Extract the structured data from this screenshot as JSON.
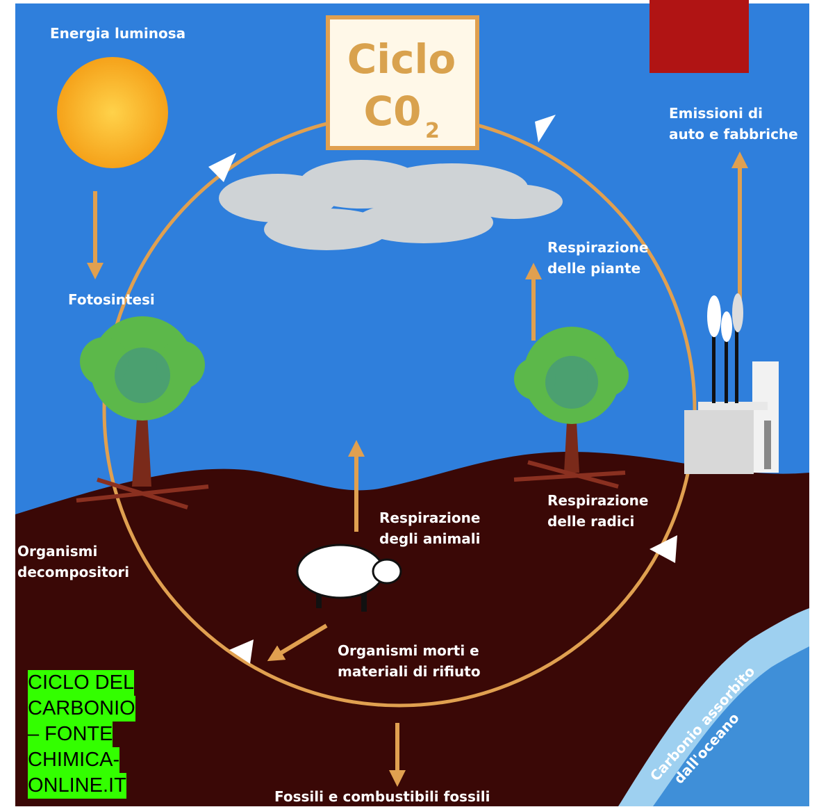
{
  "title": {
    "line1": "Ciclo",
    "line2": "C0",
    "subscript": "2"
  },
  "labels": {
    "light": [
      "Energia luminosa"
    ],
    "emissions": [
      "Emissioni di",
      "auto e fabbriche"
    ],
    "photosynthesis": [
      "Fotosintesi"
    ],
    "plant_respiration": [
      "Respirazione",
      "delle piante"
    ],
    "root_respiration": [
      "Respirazione",
      "delle radici"
    ],
    "animal_respiration": [
      "Respirazione",
      "degli animali"
    ],
    "decomposers": [
      "Organismi",
      "decompositori"
    ],
    "dead_organisms": [
      "Organismi morti e",
      "materiali di rifiuto"
    ],
    "fossils": [
      "Fossili e combustibili fossili"
    ],
    "ocean": [
      "Carbonio assorbito",
      "dall'oceano"
    ]
  },
  "caption": [
    "CICLO DEL",
    "CARBONIO",
    "– FONTE",
    "CHIMICA-",
    "ONLINE.IT"
  ]
}
